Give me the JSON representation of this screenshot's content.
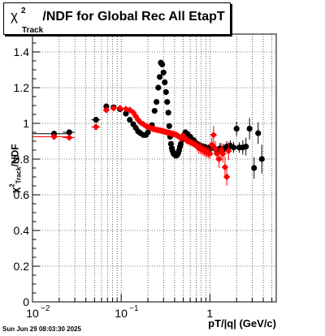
{
  "title": {
    "chi": "χ",
    "sup": "2",
    "sub": "Track",
    "text": "/NDF for Global Rec All EtapT"
  },
  "xlabel": "pT/|q| (GeV/c)",
  "ylabel": {
    "chi": "χ",
    "sup": "2",
    "sub": "Track",
    "text": "/NDF"
  },
  "timestamp": "Sun Jun 29 08:03:30 2025",
  "chart_data": {
    "type": "scatter",
    "title": "χ2Track/NDF for Global Rec All EtapT",
    "xlabel": "pT/|q| (GeV/c)",
    "ylabel": "χ2Track/NDF",
    "x_scale": "log",
    "xlim": [
      0.01,
      5.6
    ],
    "ylim": [
      0,
      1.5
    ],
    "grid": true,
    "y_ticks": [
      "0",
      "0.2",
      "0.4",
      "0.6",
      "0.8",
      "1",
      "1.2",
      "1.4"
    ],
    "x_tick_labels": [
      {
        "value": 0.01,
        "base": "10",
        "exp": "−2"
      },
      {
        "value": 0.1,
        "base": "10",
        "exp": "−1"
      },
      {
        "value": 1,
        "base": "1",
        "exp": ""
      }
    ],
    "series": [
      {
        "color": "#000000",
        "marker": "circle",
        "points": [
          [
            0.0175,
            0.942,
            0.0075,
            0
          ],
          [
            0.026,
            0.95,
            0.004,
            0.01
          ],
          [
            0.052,
            1.02,
            0.006,
            0.01
          ],
          [
            0.068,
            1.095,
            0.004,
            0.01
          ],
          [
            0.082,
            1.09,
            0.004,
            0.01
          ],
          [
            0.097,
            1.08,
            0.004,
            0.01
          ],
          [
            0.113,
            1.055,
            0.004,
            0.01
          ],
          [
            0.125,
            1.02,
            0.004,
            0.01
          ],
          [
            0.137,
            0.995,
            0.004,
            0.01
          ],
          [
            0.146,
            0.975,
            0.004,
            0.01
          ],
          [
            0.155,
            0.955,
            0.004,
            0.01
          ],
          [
            0.165,
            0.945,
            0.004,
            0.01
          ],
          [
            0.178,
            0.935,
            0.004,
            0.01
          ],
          [
            0.19,
            0.935,
            0.004,
            0.01
          ],
          [
            0.2,
            0.95,
            0.004,
            0.01
          ],
          [
            0.222,
            0.99,
            0.004,
            0.01
          ],
          [
            0.238,
            1.07,
            0.004,
            0.01
          ],
          [
            0.25,
            1.12,
            0.004,
            0.01
          ],
          [
            0.262,
            1.2,
            0.004,
            0.01
          ],
          [
            0.272,
            1.26,
            0.004,
            0.01
          ],
          [
            0.28,
            1.34,
            0.004,
            0.01
          ],
          [
            0.29,
            1.33,
            0.004,
            0.01
          ],
          [
            0.3,
            1.285,
            0.004,
            0.01
          ],
          [
            0.31,
            1.23,
            0.004,
            0.01
          ],
          [
            0.32,
            1.175,
            0.004,
            0.01
          ],
          [
            0.33,
            1.12,
            0.004,
            0.01
          ],
          [
            0.34,
            1.06,
            0.004,
            0.01
          ],
          [
            0.348,
            0.985,
            0.004,
            0.01
          ],
          [
            0.356,
            0.925,
            0.004,
            0.01
          ],
          [
            0.364,
            0.885,
            0.004,
            0.01
          ],
          [
            0.372,
            0.86,
            0.004,
            0.01
          ],
          [
            0.38,
            0.845,
            0.004,
            0.01
          ],
          [
            0.39,
            0.83,
            0.004,
            0.01
          ],
          [
            0.4,
            0.825,
            0.004,
            0.01
          ],
          [
            0.41,
            0.82,
            0.004,
            0.01
          ],
          [
            0.42,
            0.82,
            0.004,
            0.01
          ],
          [
            0.43,
            0.825,
            0.004,
            0.01
          ],
          [
            0.44,
            0.835,
            0.004,
            0.01
          ],
          [
            0.45,
            0.85,
            0.004,
            0.01
          ],
          [
            0.46,
            0.87,
            0.004,
            0.01
          ],
          [
            0.47,
            0.885,
            0.004,
            0.01
          ],
          [
            0.49,
            0.91,
            0.004,
            0.01
          ],
          [
            0.51,
            0.935,
            0.004,
            0.01
          ],
          [
            0.53,
            0.95,
            0.004,
            0.01
          ],
          [
            0.56,
            0.94,
            0.005,
            0.01
          ],
          [
            0.6,
            0.925,
            0.005,
            0.01
          ],
          [
            0.66,
            0.905,
            0.005,
            0.02
          ],
          [
            0.72,
            0.885,
            0.005,
            0.02
          ],
          [
            0.78,
            0.875,
            0.006,
            0.02
          ],
          [
            0.84,
            0.87,
            0.006,
            0.02
          ],
          [
            0.9,
            0.865,
            0.006,
            0.02
          ],
          [
            0.96,
            0.86,
            0.006,
            0.02
          ],
          [
            1.02,
            0.86,
            0.006,
            0.02
          ],
          [
            1.1,
            0.865,
            0.006,
            0.02
          ],
          [
            1.2,
            0.845,
            0.008,
            0.02
          ],
          [
            1.3,
            0.86,
            0.01,
            0.03
          ],
          [
            1.42,
            0.855,
            0.01,
            0.03
          ],
          [
            1.55,
            0.87,
            0.01,
            0.03
          ],
          [
            1.7,
            0.875,
            0.01,
            0.03
          ],
          [
            1.85,
            0.865,
            0.01,
            0.03
          ],
          [
            2.0,
            0.97,
            0.02,
            0.04
          ],
          [
            2.15,
            0.865,
            0.02,
            0.03
          ],
          [
            2.35,
            0.865,
            0.02,
            0.04
          ],
          [
            2.55,
            0.87,
            0.02,
            0.05
          ],
          [
            2.8,
            0.97,
            0.03,
            0.06
          ],
          [
            3.15,
            0.75,
            0.03,
            0.06
          ],
          [
            3.5,
            0.945,
            0.03,
            0.06
          ],
          [
            3.85,
            0.8,
            0.03,
            0.08
          ]
        ]
      },
      {
        "color": "#ff0000",
        "marker": "diamond",
        "points": [
          [
            0.0175,
            0.925,
            0.0075,
            0
          ],
          [
            0.026,
            0.92,
            0.004,
            0.01
          ],
          [
            0.052,
            0.98,
            0.006,
            0.01
          ],
          [
            0.068,
            1.075,
            0.004,
            0.01
          ],
          [
            0.082,
            1.085,
            0.004,
            0.01
          ],
          [
            0.097,
            1.085,
            0.004,
            0.01
          ],
          [
            0.113,
            1.08,
            0.004,
            0.01
          ],
          [
            0.125,
            1.075,
            0.004,
            0.01
          ],
          [
            0.137,
            1.06,
            0.004,
            0.01
          ],
          [
            0.146,
            1.04,
            0.004,
            0.01
          ],
          [
            0.155,
            1.02,
            0.004,
            0.01
          ],
          [
            0.165,
            1.005,
            0.004,
            0.01
          ],
          [
            0.178,
            0.995,
            0.004,
            0.01
          ],
          [
            0.19,
            0.985,
            0.004,
            0.01
          ],
          [
            0.2,
            0.98,
            0.004,
            0.01
          ],
          [
            0.212,
            0.975,
            0.004,
            0.01
          ],
          [
            0.224,
            0.97,
            0.004,
            0.01
          ],
          [
            0.236,
            0.967,
            0.004,
            0.01
          ],
          [
            0.25,
            0.964,
            0.004,
            0.01
          ],
          [
            0.262,
            0.962,
            0.004,
            0.01
          ],
          [
            0.275,
            0.96,
            0.004,
            0.01
          ],
          [
            0.288,
            0.958,
            0.004,
            0.01
          ],
          [
            0.3,
            0.955,
            0.004,
            0.01
          ],
          [
            0.312,
            0.953,
            0.004,
            0.01
          ],
          [
            0.325,
            0.95,
            0.004,
            0.01
          ],
          [
            0.338,
            0.948,
            0.004,
            0.01
          ],
          [
            0.35,
            0.946,
            0.004,
            0.01
          ],
          [
            0.364,
            0.944,
            0.004,
            0.01
          ],
          [
            0.378,
            0.942,
            0.004,
            0.01
          ],
          [
            0.392,
            0.94,
            0.004,
            0.01
          ],
          [
            0.406,
            0.938,
            0.004,
            0.01
          ],
          [
            0.42,
            0.935,
            0.004,
            0.01
          ],
          [
            0.435,
            0.93,
            0.004,
            0.01
          ],
          [
            0.45,
            0.925,
            0.004,
            0.01
          ],
          [
            0.465,
            0.92,
            0.004,
            0.01
          ],
          [
            0.48,
            0.915,
            0.004,
            0.01
          ],
          [
            0.5,
            0.93,
            0.005,
            0.01
          ],
          [
            0.52,
            0.92,
            0.005,
            0.02
          ],
          [
            0.545,
            0.905,
            0.005,
            0.02
          ],
          [
            0.57,
            0.9,
            0.005,
            0.02
          ],
          [
            0.6,
            0.895,
            0.005,
            0.02
          ],
          [
            0.63,
            0.89,
            0.005,
            0.02
          ],
          [
            0.66,
            0.885,
            0.005,
            0.02
          ],
          [
            0.69,
            0.88,
            0.005,
            0.02
          ],
          [
            0.72,
            0.87,
            0.005,
            0.02
          ],
          [
            0.75,
            0.86,
            0.005,
            0.03
          ],
          [
            0.78,
            0.86,
            0.006,
            0.03
          ],
          [
            0.81,
            0.855,
            0.006,
            0.03
          ],
          [
            0.84,
            0.85,
            0.006,
            0.03
          ],
          [
            0.87,
            0.845,
            0.006,
            0.03
          ],
          [
            0.9,
            0.84,
            0.006,
            0.03
          ],
          [
            0.93,
            0.84,
            0.006,
            0.03
          ],
          [
            0.96,
            0.835,
            0.006,
            0.03
          ],
          [
            1.0,
            0.83,
            0.006,
            0.03
          ],
          [
            1.05,
            0.88,
            0.008,
            0.04
          ],
          [
            1.1,
            0.935,
            0.008,
            0.05
          ],
          [
            1.15,
            0.86,
            0.008,
            0.04
          ],
          [
            1.2,
            0.83,
            0.008,
            0.04
          ],
          [
            1.27,
            0.8,
            0.01,
            0.05
          ],
          [
            1.34,
            0.85,
            0.01,
            0.04
          ],
          [
            1.4,
            0.83,
            0.01,
            0.05
          ],
          [
            1.48,
            0.755,
            0.01,
            0.06
          ],
          [
            1.55,
            0.7,
            0.01,
            0.05
          ],
          [
            1.62,
            0.845,
            0.01,
            0.05
          ]
        ]
      }
    ]
  }
}
